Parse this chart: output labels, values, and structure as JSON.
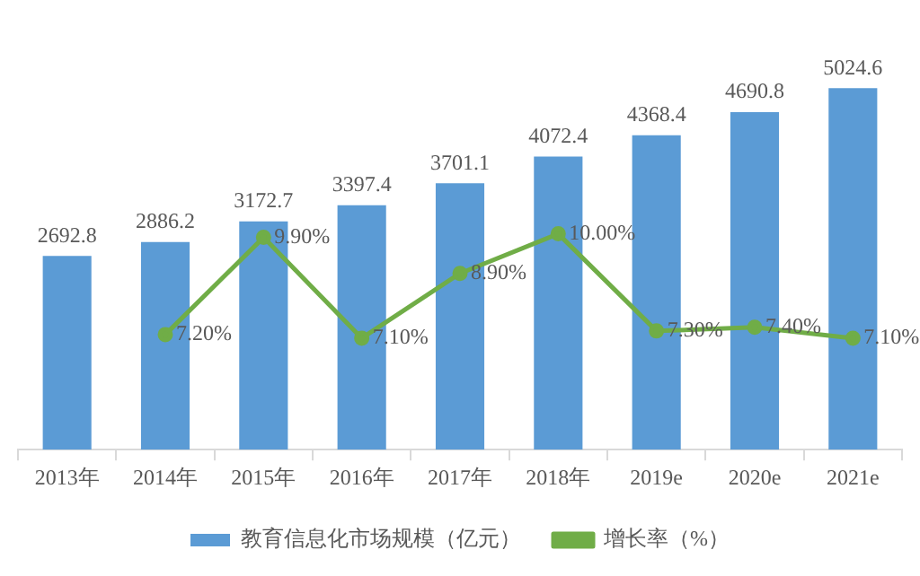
{
  "chart_data": {
    "type": "bar",
    "categories": [
      "2013年",
      "2014年",
      "2015年",
      "2016年",
      "2017年",
      "2018年",
      "2019e",
      "2020e",
      "2021e"
    ],
    "series": [
      {
        "name": "教育信息化市场规模（亿元）",
        "color": "#5b9bd5",
        "values": [
          2692.8,
          2886.2,
          3172.7,
          3397.4,
          3701.1,
          4072.4,
          4368.4,
          4690.8,
          5024.6
        ]
      },
      {
        "name": "增长率（%）",
        "type": "line",
        "axis": "y2",
        "color": "#70ad47",
        "marker": "circle",
        "values": [
          null,
          7.2,
          9.9,
          7.1,
          8.9,
          10.0,
          7.3,
          7.4,
          7.1
        ],
        "value_labels": [
          null,
          "7.20%",
          "9.90%",
          "7.10%",
          "8.90%",
          "10.00%",
          "7.30%",
          "7.40%",
          "7.10%"
        ]
      }
    ],
    "data_labels": true,
    "tick_labels": "x",
    "grid": false,
    "legend": "bottom"
  }
}
